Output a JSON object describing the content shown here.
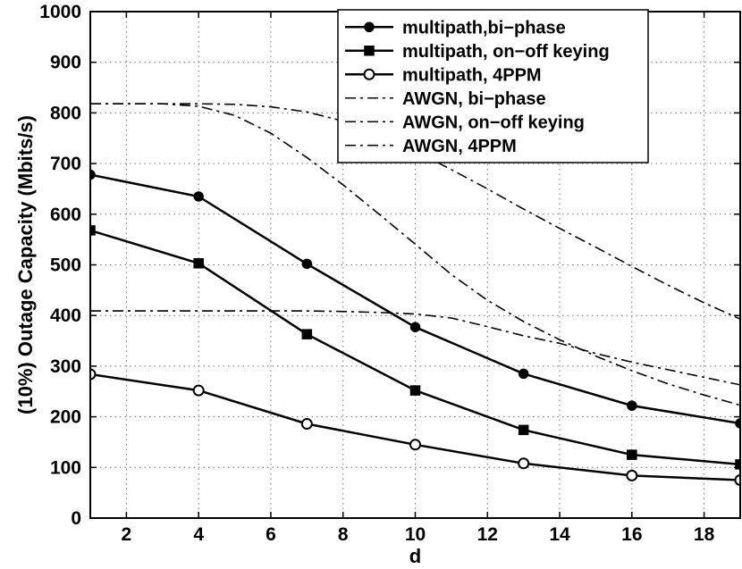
{
  "chart_data": {
    "type": "line",
    "xlabel": "d",
    "ylabel": "(10%) Outage Capacity (Mbits/s)",
    "xlim": [
      1,
      19
    ],
    "ylim": [
      0,
      1000
    ],
    "xticks": [
      2,
      4,
      6,
      8,
      10,
      12,
      14,
      16,
      18
    ],
    "yticks": [
      0,
      100,
      200,
      300,
      400,
      500,
      600,
      700,
      800,
      900,
      1000
    ],
    "grid": true,
    "legend_position": "top-right",
    "series": [
      {
        "name": "multipath,bi−phase",
        "style": "solid",
        "marker": "filled-circle",
        "color": "#000000",
        "x": [
          1,
          4,
          7,
          10,
          13,
          16,
          19
        ],
        "y": [
          678,
          635,
          502,
          377,
          285,
          222,
          187
        ]
      },
      {
        "name": "multipath, on−off keying",
        "style": "solid",
        "marker": "filled-square",
        "color": "#000000",
        "x": [
          1,
          4,
          7,
          10,
          13,
          16,
          19
        ],
        "y": [
          568,
          503,
          363,
          252,
          174,
          125,
          106
        ]
      },
      {
        "name": "multipath, 4PPM",
        "style": "solid",
        "marker": "open-circle",
        "color": "#000000",
        "x": [
          1,
          4,
          7,
          10,
          13,
          16,
          19
        ],
        "y": [
          284,
          252,
          186,
          145,
          108,
          84,
          75
        ]
      },
      {
        "name": "AWGN, bi−phase",
        "style": "dashdot",
        "marker": "none",
        "color": "#000000",
        "x": [
          1,
          2,
          3,
          4,
          5,
          6,
          7,
          8,
          9,
          10,
          11,
          12,
          13,
          14,
          15,
          16,
          17,
          18,
          19
        ],
        "y": [
          818,
          818,
          818,
          818,
          817,
          812,
          802,
          784,
          758,
          725,
          688,
          650,
          610,
          572,
          535,
          497,
          460,
          425,
          393
        ]
      },
      {
        "name": "AWGN, on−off keying",
        "style": "dashdot",
        "marker": "none",
        "color": "#000000",
        "x": [
          1,
          2,
          3,
          4,
          5,
          6,
          7,
          8,
          9,
          10,
          11,
          12,
          13,
          14,
          15,
          16,
          17,
          18,
          19
        ],
        "y": [
          409,
          409,
          409,
          409,
          409,
          409,
          409,
          408,
          406,
          403,
          395,
          378,
          360,
          345,
          325,
          308,
          293,
          278,
          263
        ]
      },
      {
        "name": "AWGN, 4PPM",
        "style": "dashdot",
        "marker": "none",
        "color": "#000000",
        "x": [
          1,
          2,
          3,
          4,
          5,
          6,
          7,
          8,
          9,
          10,
          11,
          12,
          13,
          14,
          15,
          16,
          17,
          18,
          19
        ],
        "y": [
          818,
          818,
          818,
          813,
          795,
          760,
          712,
          658,
          600,
          541,
          481,
          430,
          388,
          352,
          320,
          291,
          265,
          243,
          223
        ]
      }
    ]
  }
}
